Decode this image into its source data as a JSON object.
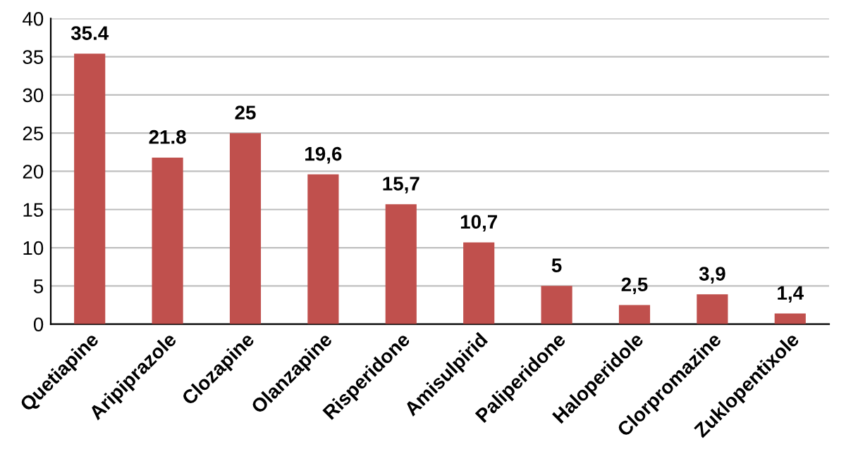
{
  "chart_data": {
    "type": "bar",
    "categories": [
      "Quetiapine",
      "Aripiprazole",
      "Clozapine",
      "Olanzapine",
      "Risperidone",
      "Amisulpirid",
      "Paliperidone",
      "Haloperidole",
      "Clorpromazine",
      "Zuklopentixole"
    ],
    "values": [
      35.4,
      21.8,
      25,
      19.6,
      15.7,
      10.7,
      5,
      2.5,
      3.9,
      1.4
    ],
    "value_labels": [
      "35.4",
      "21.8",
      "25",
      "19,6",
      "15,7",
      "10,7",
      "5",
      "2,5",
      "3,9",
      "1,4"
    ],
    "color": "#c0504d",
    "ylim": [
      0,
      40
    ],
    "yticks": [
      0,
      5,
      10,
      15,
      20,
      25,
      30,
      35,
      40
    ],
    "grid": "y"
  }
}
